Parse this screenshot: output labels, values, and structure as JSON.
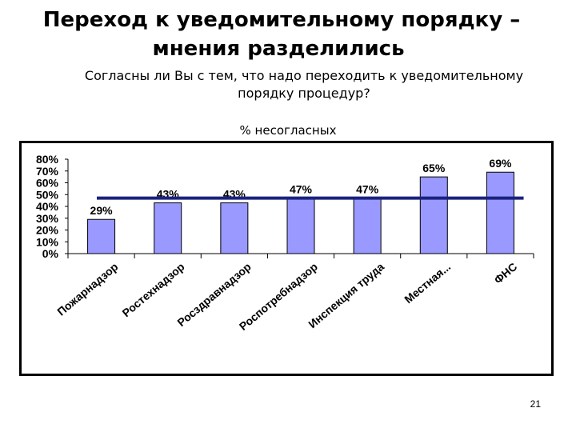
{
  "slide": {
    "title_line1": "Переход к уведомительному порядку –",
    "title_line2": "мнения разделились",
    "question_line1": "Согласны ли Вы с тем, что надо переходить к уведомительному",
    "question_line2": "порядку процедур?",
    "page_number": "21"
  },
  "chart_data": {
    "type": "bar",
    "series_label": "% несогласных",
    "categories": [
      "Пожарнадзор",
      "Ростехнадзор",
      "Росздравнадзор",
      "Роспотребнадзор",
      "Инспекция труда",
      "Местная...",
      "ФНС"
    ],
    "values": [
      29,
      43,
      43,
      47,
      47,
      65,
      69
    ],
    "value_labels": [
      "29%",
      "43%",
      "43%",
      "47%",
      "47%",
      "65%",
      "69%"
    ],
    "reference_line": 47,
    "ylim": [
      0,
      80
    ],
    "yticks": [
      "0%",
      "10%",
      "20%",
      "30%",
      "40%",
      "50%",
      "60%",
      "70%",
      "80%"
    ],
    "colors": {
      "bar": "#9999ff",
      "bar_edge": "#000000",
      "reference_line": "#1a237e"
    }
  }
}
